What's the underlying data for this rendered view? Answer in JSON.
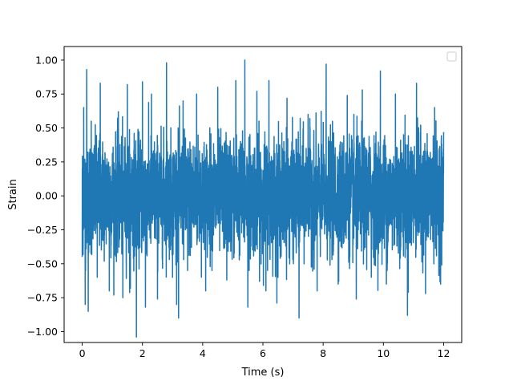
{
  "chart_data": {
    "type": "line",
    "title": "",
    "xlabel": "Time (s)",
    "ylabel": "Strain",
    "xlim": [
      -0.6,
      12.6
    ],
    "ylim": [
      -1.08,
      1.1
    ],
    "x_ticks": [
      0,
      2,
      4,
      6,
      8,
      10,
      12
    ],
    "x_tick_labels": [
      "0",
      "2",
      "4",
      "6",
      "8",
      "10",
      "12"
    ],
    "y_ticks": [
      -1.0,
      -0.75,
      -0.5,
      -0.25,
      0.0,
      0.25,
      0.5,
      0.75,
      1.0
    ],
    "y_tick_labels": [
      "−1.00",
      "−0.75",
      "−0.50",
      "−0.25",
      "0.00",
      "0.25",
      "0.50",
      "0.75",
      "1.00"
    ],
    "grid": false,
    "legend": {
      "position": "top-right",
      "entries": []
    },
    "series_color": "#1f77b4",
    "series": [
      {
        "x": [
          0.0,
          0.05,
          0.1,
          0.15,
          0.2,
          0.3,
          0.5,
          0.6,
          0.9,
          1.2,
          1.35,
          1.5,
          1.6,
          1.8,
          2.0,
          2.1,
          2.3,
          2.5,
          2.8,
          3.0,
          3.2,
          3.35,
          3.5,
          3.8,
          4.1,
          4.5,
          4.8,
          5.1,
          5.4,
          5.5,
          5.8,
          6.1,
          6.2,
          6.5,
          6.8,
          7.2,
          7.5,
          7.8,
          8.1,
          8.5,
          8.8,
          9.1,
          9.3,
          9.6,
          9.9,
          10.1,
          10.4,
          10.8,
          11.1,
          11.4,
          11.7,
          11.9,
          12.0
        ],
        "y": [
          -0.45,
          0.65,
          -0.8,
          0.93,
          -0.85,
          0.55,
          -0.6,
          0.83,
          -0.7,
          0.62,
          -0.75,
          0.82,
          -0.68,
          -1.04,
          0.84,
          -0.82,
          0.75,
          -0.76,
          0.98,
          -0.6,
          -0.9,
          0.7,
          -0.55,
          0.75,
          -0.7,
          0.8,
          -0.62,
          0.85,
          1.0,
          -0.82,
          0.77,
          -0.7,
          0.85,
          -0.6,
          0.72,
          -0.9,
          0.6,
          -0.7,
          0.97,
          -0.65,
          0.74,
          -0.76,
          0.78,
          -0.6,
          0.92,
          -0.65,
          0.75,
          -0.88,
          0.83,
          -0.72,
          0.65,
          -0.65,
          0.47
        ]
      }
    ]
  }
}
